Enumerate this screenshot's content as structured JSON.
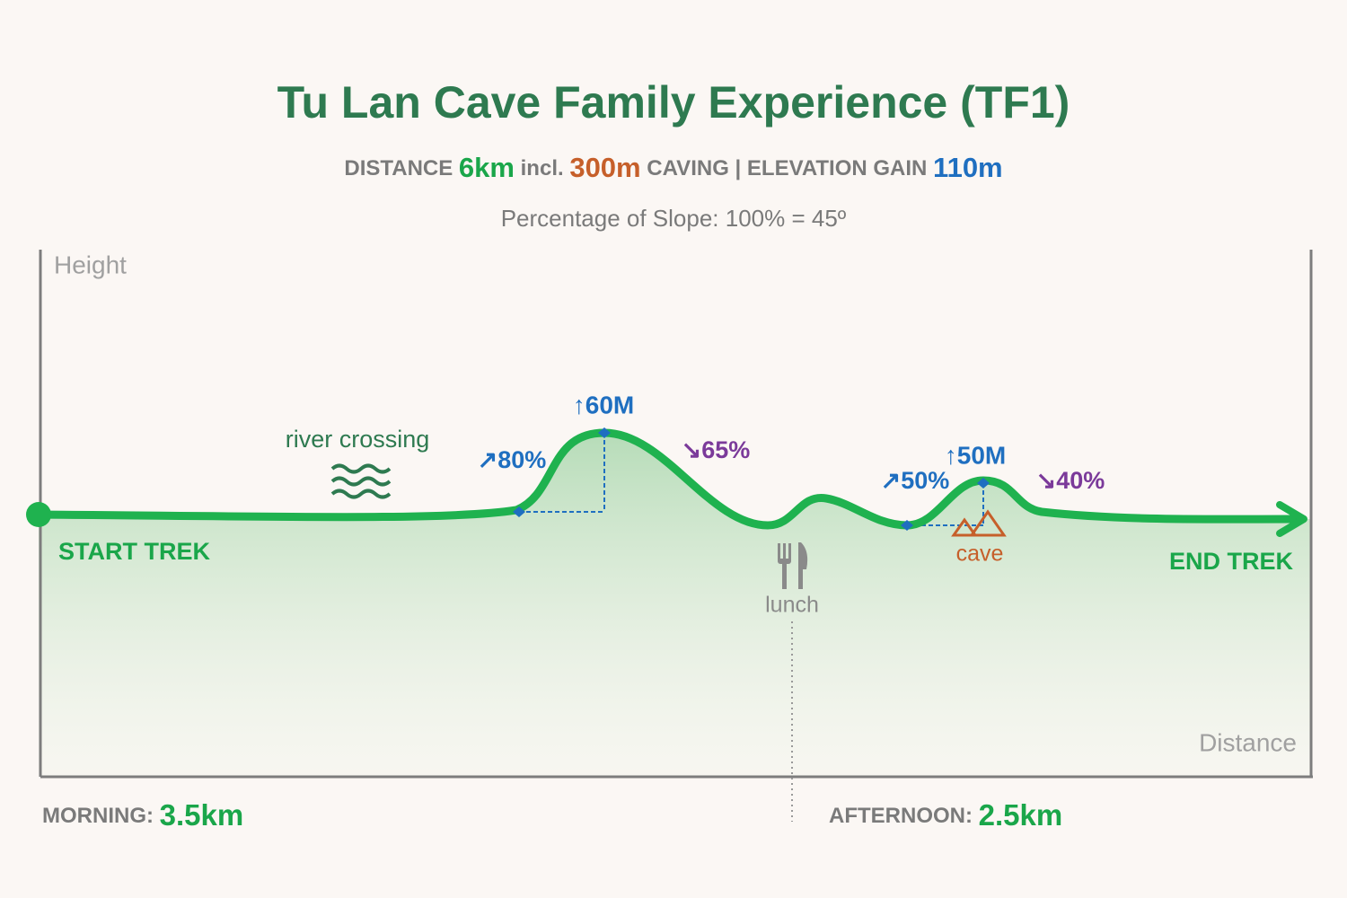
{
  "title": "Tu Lan Cave Family Experience (TF1)",
  "subtitle": {
    "distance_label": "DISTANCE",
    "distance": "6km",
    "incl": "incl.",
    "caving": "300m",
    "caving_label": "CAVING",
    "separator": "|",
    "elevation_label": "ELEVATION GAIN",
    "elevation": "110m"
  },
  "slope_note": "Percentage of Slope: 100% = 45º",
  "axes": {
    "y_label": "Height",
    "x_label": "Distance"
  },
  "annotations": {
    "river": "river crossing",
    "climb1": "↑60M",
    "slope_up1": "↗80%",
    "slope_down1": "↘65%",
    "climb2": "↑50M",
    "slope_up2": "↗50%",
    "slope_down2": "↘40%",
    "lunch": "lunch",
    "cave": "cave",
    "start": "START TREK",
    "end": "END TREK"
  },
  "footer": {
    "morning_label": "MORNING:",
    "morning": "3.5km",
    "afternoon_label": "AFTERNOON:",
    "afternoon": "2.5km"
  }
}
